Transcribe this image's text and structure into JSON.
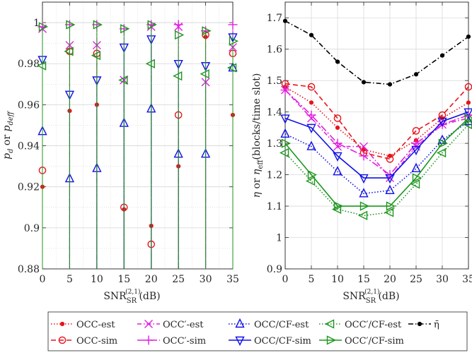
{
  "chart_data": [
    {
      "type": "scatter",
      "xlabel": "SNR",
      "xlabel_sub": "SR",
      "xlabel_sup": "(2,1)",
      "xlabel_unit": "(dB)",
      "ylabel": "p",
      "ylabel_sub": "d",
      "ylabel_mid": " or ",
      "ylabel_sub2": "deff",
      "xlim": [
        0,
        35
      ],
      "ylim": [
        0.88,
        1.01
      ],
      "xticks": [
        0,
        5,
        10,
        15,
        20,
        25,
        30,
        35
      ],
      "xtick_labels": [
        "0",
        "5",
        "10",
        "15",
        "20",
        "25",
        "30",
        "35"
      ],
      "yticks": [
        0.88,
        0.9,
        0.92,
        0.94,
        0.96,
        0.98,
        1
      ],
      "ytick_labels": [
        "0.88",
        "0.9",
        "0.92",
        "0.94",
        "0.96",
        "0.98",
        "1"
      ],
      "grid": true,
      "x": [
        0,
        5,
        10,
        15,
        20,
        25,
        30,
        35
      ],
      "series": [
        {
          "name": "OCC-est",
          "values": [
            0.92,
            0.957,
            0.96,
            0.909,
            0.901,
            0.93,
            0.993,
            0.955
          ]
        },
        {
          "name": "OCC-sim",
          "values": [
            0.928,
            0.986,
            0.985,
            0.91,
            0.892,
            0.955,
            0.994,
            0.985
          ]
        },
        {
          "name": "OCC′-est",
          "values": [
            0.997,
            0.989,
            0.989,
            0.972,
            0.998,
            0.998,
            0.971,
            0.988
          ]
        },
        {
          "name": "OCC′-sim",
          "values": [
            0.998,
            0.999,
            0.999,
            0.997,
            0.999,
            0.999,
            0.996,
            0.999
          ]
        },
        {
          "name": "OCC/CF-est",
          "values": [
            0.947,
            0.924,
            0.929,
            0.951,
            0.958,
            0.936,
            0.936,
            0.978
          ]
        },
        {
          "name": "OCC/CF-sim",
          "values": [
            0.982,
            0.965,
            0.972,
            0.988,
            0.992,
            0.98,
            0.979,
            0.993
          ]
        },
        {
          "name": "OCC′/CF-est",
          "values": [
            0.979,
            0.986,
            0.984,
            0.972,
            0.98,
            0.974,
            0.975,
            0.978
          ]
        },
        {
          "name": "OCC′/CF-sim",
          "values": [
            0.998,
            0.999,
            0.999,
            0.997,
            0.999,
            0.994,
            0.996,
            0.991
          ]
        }
      ]
    },
    {
      "type": "line",
      "xlabel": "SNR",
      "xlabel_sub": "SR",
      "xlabel_sup": "(2,1)",
      "xlabel_unit": "(dB)",
      "ylabel": "η",
      "ylabel_mid": " or ",
      "ylabel_sym2": "η",
      "ylabel_sub2": "eff",
      "ylabel_unit": "(blocks/time slot)",
      "xlim": [
        0,
        35
      ],
      "ylim": [
        0.9,
        1.75
      ],
      "xticks": [
        0,
        5,
        10,
        15,
        20,
        25,
        30,
        35
      ],
      "xtick_labels": [
        "0",
        "5",
        "10",
        "15",
        "20",
        "25",
        "30",
        "35"
      ],
      "yticks": [
        0.9,
        1,
        1.1,
        1.2,
        1.3,
        1.4,
        1.5,
        1.6,
        1.7
      ],
      "ytick_labels": [
        "0.9",
        "1",
        "1.1",
        "1.2",
        "1.3",
        "1.4",
        "1.5",
        "1.6",
        "1.7"
      ],
      "grid": true,
      "x": [
        0,
        5,
        10,
        15,
        20,
        25,
        30,
        35
      ],
      "series": [
        {
          "name": "OCC-est",
          "values": [
            1.48,
            1.43,
            1.35,
            1.28,
            1.26,
            1.31,
            1.38,
            1.43
          ]
        },
        {
          "name": "OCC-sim",
          "values": [
            1.49,
            1.48,
            1.38,
            1.27,
            1.25,
            1.34,
            1.39,
            1.48
          ]
        },
        {
          "name": "OCC′-est",
          "values": [
            1.47,
            1.38,
            1.29,
            1.29,
            1.19,
            1.29,
            1.36,
            1.38
          ]
        },
        {
          "name": "OCC′-sim",
          "values": [
            1.47,
            1.39,
            1.3,
            1.26,
            1.2,
            1.3,
            1.36,
            1.39
          ]
        },
        {
          "name": "OCC/CF-est",
          "values": [
            1.33,
            1.29,
            1.21,
            1.14,
            1.15,
            1.22,
            1.31,
            1.37
          ]
        },
        {
          "name": "OCC/CF-sim",
          "values": [
            1.38,
            1.35,
            1.26,
            1.19,
            1.19,
            1.28,
            1.37,
            1.4
          ]
        },
        {
          "name": "OCC′/CF-est",
          "values": [
            1.27,
            1.18,
            1.09,
            1.07,
            1.08,
            1.17,
            1.27,
            1.36
          ]
        },
        {
          "name": "OCC′/CF-sim",
          "values": [
            1.3,
            1.2,
            1.1,
            1.1,
            1.1,
            1.19,
            1.3,
            1.38
          ]
        },
        {
          "name": "η̄",
          "values": [
            1.69,
            1.645,
            1.56,
            1.495,
            1.488,
            1.52,
            1.58,
            1.64
          ]
        }
      ]
    }
  ],
  "legend": {
    "items": [
      {
        "label": "OCC-est",
        "color": "#e8141b",
        "dash": "1.5 2.5",
        "marker": "dot"
      },
      {
        "label": "OCC′-est",
        "color": "#e01ee0",
        "dash": "6 3 1.5 3",
        "marker": "x"
      },
      {
        "label": "OCC/CF-est",
        "color": "#1010e8",
        "dash": "1.5 2.5",
        "marker": "triangle-up"
      },
      {
        "label": "OCC′/CF-est",
        "color": "#1e961e",
        "dash": "1.5 2.5",
        "marker": "triangle-left"
      },
      {
        "label": "η̄",
        "color": "#000000",
        "dash": "7 3 1.5 3",
        "marker": "dot"
      },
      {
        "label": "OCC-sim",
        "color": "#e8141b",
        "dash": "7 4",
        "marker": "circle"
      },
      {
        "label": "OCC′-sim",
        "color": "#e01ee0",
        "dash": "10 3 2 3",
        "marker": "plus"
      },
      {
        "label": "OCC/CF-sim",
        "color": "#1010e8",
        "dash": "",
        "marker": "triangle-down"
      },
      {
        "label": "OCC′/CF-sim",
        "color": "#1e961e",
        "dash": "",
        "marker": "triangle-right"
      }
    ]
  }
}
